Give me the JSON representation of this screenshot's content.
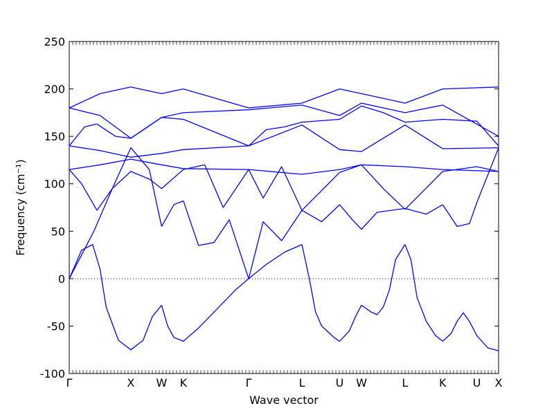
{
  "chart_data": {
    "type": "line",
    "xlabel": "Wave vector",
    "ylabel": "Frequency (cm⁻¹)",
    "ylim": [
      -100,
      250
    ],
    "y_ticks": [
      -100,
      -50,
      0,
      50,
      100,
      150,
      200,
      250
    ],
    "x_ticks": [
      {
        "label": "Γ",
        "x": 0
      },
      {
        "label": "X",
        "x": 1
      },
      {
        "label": "W",
        "x": 1.5
      },
      {
        "label": "K",
        "x": 1.854
      },
      {
        "label": "Γ",
        "x": 2.914
      },
      {
        "label": "L",
        "x": 3.78
      },
      {
        "label": "U",
        "x": 4.393
      },
      {
        "label": "W",
        "x": 4.747
      },
      {
        "label": "L",
        "x": 5.454
      },
      {
        "label": "K",
        "x": 6.066
      },
      {
        "label": "U",
        "x": 6.62
      },
      {
        "label": "X",
        "x": 6.974
      }
    ],
    "xlim": [
      0,
      6.974
    ],
    "grid": false,
    "zero_line": "dotted",
    "line_color": "#0000ff",
    "series": [
      {
        "x": [
          0,
          0.2,
          0.38,
          0.5,
          0.6,
          0.8,
          1.0,
          1.2,
          1.35,
          1.5
        ],
        "values": [
          0,
          30,
          36,
          10,
          -30,
          -65,
          -75,
          -65,
          -40,
          -28
        ]
      },
      {
        "x": [
          1.5,
          1.6,
          1.7,
          1.854,
          2.1,
          2.4,
          2.7,
          2.914
        ],
        "values": [
          -28,
          -50,
          -62,
          -66,
          -52,
          -32,
          -12,
          0
        ]
      },
      {
        "x": [
          2.914,
          3.2,
          3.5,
          3.78
        ],
        "values": [
          0,
          15,
          28,
          36
        ]
      },
      {
        "x": [
          3.78,
          3.9,
          4.0,
          4.1,
          4.3,
          4.393
        ],
        "values": [
          36,
          0,
          -35,
          -50,
          -62,
          -66
        ]
      },
      {
        "x": [
          4.393,
          4.55,
          4.65,
          4.747,
          4.9,
          5.0,
          5.1,
          5.2,
          5.3,
          5.454
        ],
        "values": [
          -66,
          -55,
          -40,
          -28,
          -35,
          -38,
          -30,
          -12,
          20,
          36
        ]
      },
      {
        "x": [
          5.454,
          5.55,
          5.65,
          5.8,
          5.95,
          6.066
        ],
        "values": [
          36,
          20,
          -20,
          -45,
          -60,
          -66
        ]
      },
      {
        "x": [
          6.066,
          6.2,
          6.3,
          6.4,
          6.5,
          6.62,
          6.8,
          6.974
        ],
        "values": [
          -66,
          -58,
          -45,
          -36,
          -45,
          -60,
          -73,
          -76
        ]
      },
      {
        "x": [
          0,
          0.4,
          0.7,
          1.0,
          1.3,
          1.5
        ],
        "values": [
          0,
          50,
          95,
          138,
          115,
          55
        ]
      },
      {
        "x": [
          1.5,
          1.7,
          1.854
        ],
        "values": [
          55,
          78,
          82
        ]
      },
      {
        "x": [
          1.854,
          2.1,
          2.35,
          2.6,
          2.914
        ],
        "values": [
          82,
          35,
          38,
          62,
          0
        ]
      },
      {
        "x": [
          2.914,
          3.15,
          3.45,
          3.78
        ],
        "values": [
          0,
          60,
          40,
          72
        ]
      },
      {
        "x": [
          3.78,
          4.1,
          4.393
        ],
        "values": [
          72,
          60,
          78
        ]
      },
      {
        "x": [
          4.393,
          4.6,
          4.747,
          5.0,
          5.454
        ],
        "values": [
          78,
          62,
          52,
          70,
          74
        ]
      },
      {
        "x": [
          5.454,
          5.8,
          6.066
        ],
        "values": [
          74,
          68,
          78
        ]
      },
      {
        "x": [
          6.066,
          6.3,
          6.5,
          6.62,
          6.974
        ],
        "values": [
          78,
          55,
          58,
          80,
          138
        ]
      },
      {
        "x": [
          0,
          0.2,
          0.45,
          0.7,
          1.0,
          1.3,
          1.5,
          1.854
        ],
        "values": [
          115,
          100,
          72,
          95,
          113,
          105,
          95,
          115
        ]
      },
      {
        "x": [
          1.854,
          2.2,
          2.5,
          2.914
        ],
        "values": [
          115,
          120,
          75,
          115
        ]
      },
      {
        "x": [
          2.914,
          3.15,
          3.45,
          3.78,
          4.393,
          4.747,
          5.1,
          5.454,
          6.066,
          6.62,
          6.974
        ],
        "values": [
          115,
          85,
          118,
          72,
          112,
          120,
          95,
          73,
          113,
          118,
          113
        ]
      },
      {
        "x": [
          0,
          0.25,
          0.45,
          0.75,
          1.0,
          1.5,
          1.854,
          2.914
        ],
        "values": [
          140,
          160,
          163,
          150,
          148,
          170,
          168,
          140
        ]
      },
      {
        "x": [
          2.914,
          3.2,
          3.5,
          3.78,
          4.393,
          4.747,
          5.1,
          5.454,
          6.066,
          6.62,
          6.974
        ],
        "values": [
          140,
          157,
          160,
          165,
          168,
          182,
          175,
          165,
          168,
          166,
          140
        ]
      },
      {
        "x": [
          0,
          0.5,
          1.0,
          1.5,
          1.854,
          2.914,
          3.78,
          4.393,
          4.747,
          5.454,
          6.066,
          6.974
        ],
        "values": [
          180,
          195,
          202,
          195,
          200,
          180,
          185,
          200,
          195,
          185,
          200,
          202
        ]
      },
      {
        "x": [
          0,
          0.5,
          1.0,
          1.5,
          1.854,
          2.914,
          3.78,
          4.393,
          4.747,
          5.454,
          6.066,
          6.974
        ],
        "values": [
          180,
          172,
          148,
          170,
          175,
          178,
          183,
          172,
          185,
          175,
          183,
          150
        ]
      },
      {
        "x": [
          0,
          0.5,
          1.0,
          1.5,
          1.854,
          2.914,
          3.78,
          4.393,
          4.747,
          5.454,
          6.066,
          6.974
        ],
        "values": [
          140,
          135,
          128,
          132,
          136,
          140,
          162,
          136,
          134,
          162,
          137,
          138
        ]
      },
      {
        "x": [
          0,
          0.5,
          1.0,
          1.5,
          1.854,
          2.914,
          3.78,
          4.393,
          4.747,
          5.454,
          6.066,
          6.974
        ],
        "values": [
          115,
          120,
          126,
          120,
          116,
          115,
          110,
          115,
          120,
          118,
          115,
          113
        ]
      }
    ]
  }
}
